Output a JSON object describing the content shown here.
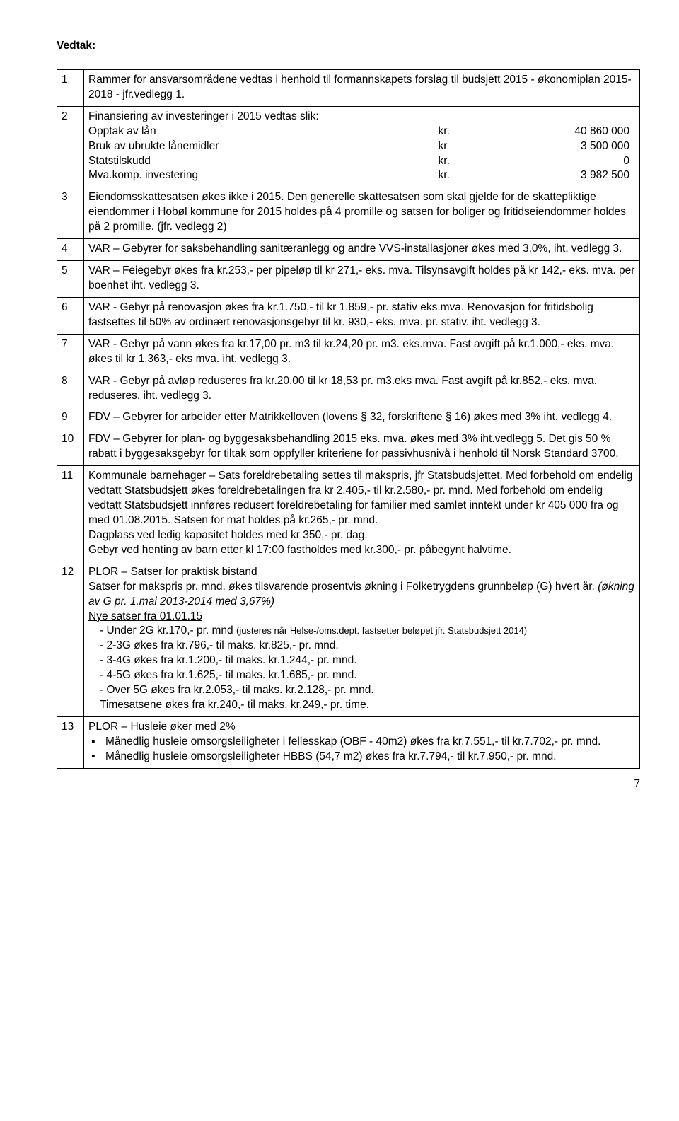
{
  "heading": "Vedtak:",
  "rows": [
    {
      "n": "1",
      "text": "Rammer for ansvarsområdene vedtas i henhold til formannskapets forslag til budsjett 2015 - økonomiplan 2015-2018 - jfr.vedlegg 1."
    },
    {
      "n": "2",
      "intro": "Finansiering av investeringer i 2015 vedtas slik:",
      "fin": [
        {
          "a": "Opptak av lån",
          "b": "kr.",
          "c": "40 860 000"
        },
        {
          "a": "Bruk av ubrukte lånemidler",
          "b": "kr",
          "c": "3 500 000"
        },
        {
          "a": "Statstilskudd",
          "b": "kr.",
          "c": "0"
        },
        {
          "a": "Mva.komp. investering",
          "b": "kr.",
          "c": "3 982 500"
        }
      ]
    },
    {
      "n": "3",
      "text": "Eiendomsskattesatsen økes ikke i 2015. Den generelle skattesatsen som skal gjelde for de skattepliktige eiendommer i Hobøl kommune for 2015 holdes på 4 promille og satsen for boliger og fritidseiendommer holdes på 2 promille. (jfr. vedlegg 2)"
    },
    {
      "n": "4",
      "text": "VAR – Gebyrer for saksbehandling sanitæranlegg og andre VVS-installasjoner økes med 3,0%, iht. vedlegg 3."
    },
    {
      "n": "5",
      "text": "VAR – Feiegebyr økes fra kr.253,- per pipeløp til kr 271,- eks. mva. Tilsynsavgift holdes på kr 142,- eks. mva. per boenhet iht. vedlegg 3."
    },
    {
      "n": "6",
      "text": "VAR - Gebyr på renovasjon økes fra kr.1.750,- til kr 1.859,- pr. stativ eks.mva. Renovasjon for fritidsbolig fastsettes til 50% av ordinært renovasjonsgebyr til kr. 930,- eks. mva. pr. stativ. iht. vedlegg 3."
    },
    {
      "n": "7",
      "text": "VAR - Gebyr på vann økes fra kr.17,00 pr. m3 til kr.24,20 pr. m3. eks.mva. Fast avgift på kr.1.000,- eks. mva. økes til kr 1.363,- eks mva. iht. vedlegg 3."
    },
    {
      "n": "8",
      "text": "VAR - Gebyr på avløp reduseres fra kr.20,00 til kr 18,53 pr. m3.eks mva. Fast avgift på kr.852,- eks. mva. reduseres, iht. vedlegg 3."
    },
    {
      "n": "9",
      "text": "FDV – Gebyrer for arbeider etter Matrikkelloven (lovens § 32, forskriftene § 16) økes med 3% iht. vedlegg 4."
    },
    {
      "n": "10",
      "text": "FDV – Gebyrer for plan- og byggesaksbehandling 2015 eks. mva. økes med 3% iht.vedlegg 5. Det gis 50 % rabatt i byggesaksgebyr for tiltak som oppfyller kriteriene for passivhusnivå i henhold til Norsk Standard 3700."
    },
    {
      "n": "11",
      "lines": [
        "Kommunale barnehager – Sats foreldrebetaling settes til makspris, jfr Statsbudsjettet. Med forbehold om endelig vedtatt Statsbudsjett økes foreldrebetalingen fra kr 2.405,- til kr.2.580,- pr. mnd. Med forbehold om endelig vedtatt Statsbudsjett innføres redusert foreldrebetaling for familier med samlet inntekt under kr 405 000 fra og med 01.08.2015. Satsen for mat holdes på kr.265,- pr. mnd.",
        "Dagplass ved ledig kapasitet holdes med kr 350,- pr. dag.",
        "Gebyr ved henting av barn etter kl 17:00 fastholdes med kr.300,- pr. påbegynt halvtime."
      ]
    },
    {
      "n": "12",
      "l1": "PLOR – Satser for praktisk bistand",
      "l2_a": "Satser for makspris pr. mnd. økes tilsvarende prosentvis økning i Folketrygdens grunnbeløp (G) hvert år. ",
      "l2_b": "(økning av G pr. 1.mai 2013-2014 med 3,67%)",
      "l3": "Nye satser fra 01.01.15",
      "i": [
        {
          "a": "- Under 2G kr.170,- pr. mnd ",
          "b": "(justeres når Helse-/oms.dept. fastsetter beløpet jfr. Statsbudsjett 2014)"
        },
        {
          "a": "- 2-3G økes fra kr.796,- til maks. kr.825,- pr. mnd."
        },
        {
          "a": "- 3-4G økes fra kr.1.200,- til maks. kr.1.244,- pr. mnd."
        },
        {
          "a": "- 4-5G økes fra kr.1.625,- til maks. kr.1.685,- pr. mnd."
        },
        {
          "a": "- Over 5G økes fra kr.2.053,- til maks. kr.2.128,- pr. mnd."
        }
      ],
      "l4": "Timesatsene økes fra kr.240,- til maks. kr.249,- pr. time."
    },
    {
      "n": "13",
      "l1": "PLOR – Husleie øker med 2%",
      "b": [
        "Månedlig husleie omsorgsleiligheter i fellesskap (OBF - 40m2) økes fra kr.7.551,- til kr.7.702,- pr. mnd.",
        "Månedlig husleie omsorgsleiligheter HBBS (54,7 m2) økes fra kr.7.794,- til kr.7.950,- pr. mnd."
      ]
    }
  ],
  "page": "7"
}
